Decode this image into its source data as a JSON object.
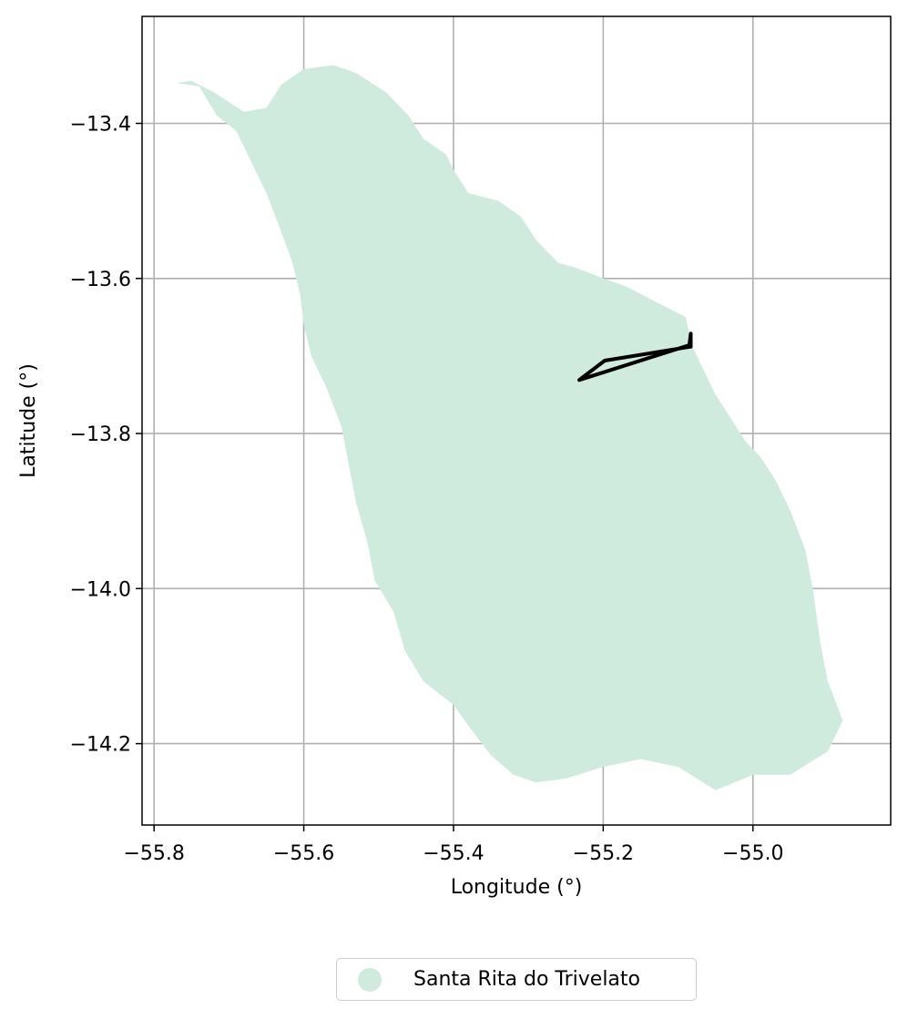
{
  "map": {
    "xlabel": "Longitude (°)",
    "ylabel": "Latitude (°)",
    "xlim": [
      -55.816,
      -54.816
    ],
    "ylim": [
      -14.305,
      -13.262
    ],
    "x_ticks": [
      {
        "value": -55.8,
        "label": "−55.8"
      },
      {
        "value": -55.6,
        "label": "−55.6"
      },
      {
        "value": -55.4,
        "label": "−55.4"
      },
      {
        "value": -55.2,
        "label": "−55.2"
      },
      {
        "value": -55.0,
        "label": "−55.0"
      }
    ],
    "y_ticks": [
      {
        "value": -13.4,
        "label": "−13.4"
      },
      {
        "value": -13.6,
        "label": "−13.6"
      },
      {
        "value": -13.8,
        "label": "−13.8"
      },
      {
        "value": -14.0,
        "label": "−14.0"
      },
      {
        "value": -14.2,
        "label": "−14.2"
      }
    ],
    "grid": true,
    "region": {
      "name": "Santa Rita do Trivelato",
      "color": "#cfebdd",
      "outline": [
        [
          -55.77,
          -13.348
        ],
        [
          -55.74,
          -13.352
        ],
        [
          -55.716,
          -13.39
        ],
        [
          -55.69,
          -13.41
        ],
        [
          -55.67,
          -13.45
        ],
        [
          -55.65,
          -13.49
        ],
        [
          -55.63,
          -13.54
        ],
        [
          -55.615,
          -13.58
        ],
        [
          -55.605,
          -13.62
        ],
        [
          -55.6,
          -13.66
        ],
        [
          -55.59,
          -13.7
        ],
        [
          -55.57,
          -13.74
        ],
        [
          -55.55,
          -13.79
        ],
        [
          -55.54,
          -13.84
        ],
        [
          -55.53,
          -13.89
        ],
        [
          -55.515,
          -13.94
        ],
        [
          -55.505,
          -13.99
        ],
        [
          -55.48,
          -14.03
        ],
        [
          -55.465,
          -14.08
        ],
        [
          -55.44,
          -14.12
        ],
        [
          -55.4,
          -14.15
        ],
        [
          -55.37,
          -14.19
        ],
        [
          -55.35,
          -14.215
        ],
        [
          -55.32,
          -14.24
        ],
        [
          -55.29,
          -14.25
        ],
        [
          -55.25,
          -14.245
        ],
        [
          -55.2,
          -14.23
        ],
        [
          -55.15,
          -14.22
        ],
        [
          -55.1,
          -14.23
        ],
        [
          -55.05,
          -14.26
        ],
        [
          -55.0,
          -14.24
        ],
        [
          -54.95,
          -14.24
        ],
        [
          -54.9,
          -14.21
        ],
        [
          -54.88,
          -14.17
        ],
        [
          -54.9,
          -14.12
        ],
        [
          -54.91,
          -14.07
        ],
        [
          -54.92,
          -14.0
        ],
        [
          -54.93,
          -13.95
        ],
        [
          -54.95,
          -13.9
        ],
        [
          -54.97,
          -13.86
        ],
        [
          -54.99,
          -13.83
        ],
        [
          -55.01,
          -13.81
        ],
        [
          -55.03,
          -13.78
        ],
        [
          -55.05,
          -13.75
        ],
        [
          -55.08,
          -13.69
        ],
        [
          -55.09,
          -13.65
        ],
        [
          -55.13,
          -13.63
        ],
        [
          -55.17,
          -13.61
        ],
        [
          -55.2,
          -13.6
        ],
        [
          -55.24,
          -13.585
        ],
        [
          -55.26,
          -13.58
        ],
        [
          -55.29,
          -13.55
        ],
        [
          -55.31,
          -13.52
        ],
        [
          -55.34,
          -13.5
        ],
        [
          -55.38,
          -13.49
        ],
        [
          -55.4,
          -13.46
        ],
        [
          -55.41,
          -13.44
        ],
        [
          -55.44,
          -13.42
        ],
        [
          -55.46,
          -13.39
        ],
        [
          -55.49,
          -13.36
        ],
        [
          -55.53,
          -13.335
        ],
        [
          -55.56,
          -13.325
        ],
        [
          -55.6,
          -13.33
        ],
        [
          -55.63,
          -13.35
        ],
        [
          -55.65,
          -13.38
        ],
        [
          -55.68,
          -13.385
        ],
        [
          -55.72,
          -13.36
        ],
        [
          -55.75,
          -13.345
        ]
      ]
    },
    "parcel": {
      "stroke": "#000000",
      "outline": [
        [
          -55.232,
          -13.731
        ],
        [
          -55.198,
          -13.706
        ],
        [
          -55.083,
          -13.688
        ],
        [
          -55.083,
          -13.671
        ],
        [
          -55.085,
          -13.686
        ],
        [
          -55.232,
          -13.731
        ]
      ]
    }
  },
  "legend": {
    "label": "Santa Rita do Trivelato",
    "marker_color": "#cfebdd",
    "placement": "below"
  }
}
